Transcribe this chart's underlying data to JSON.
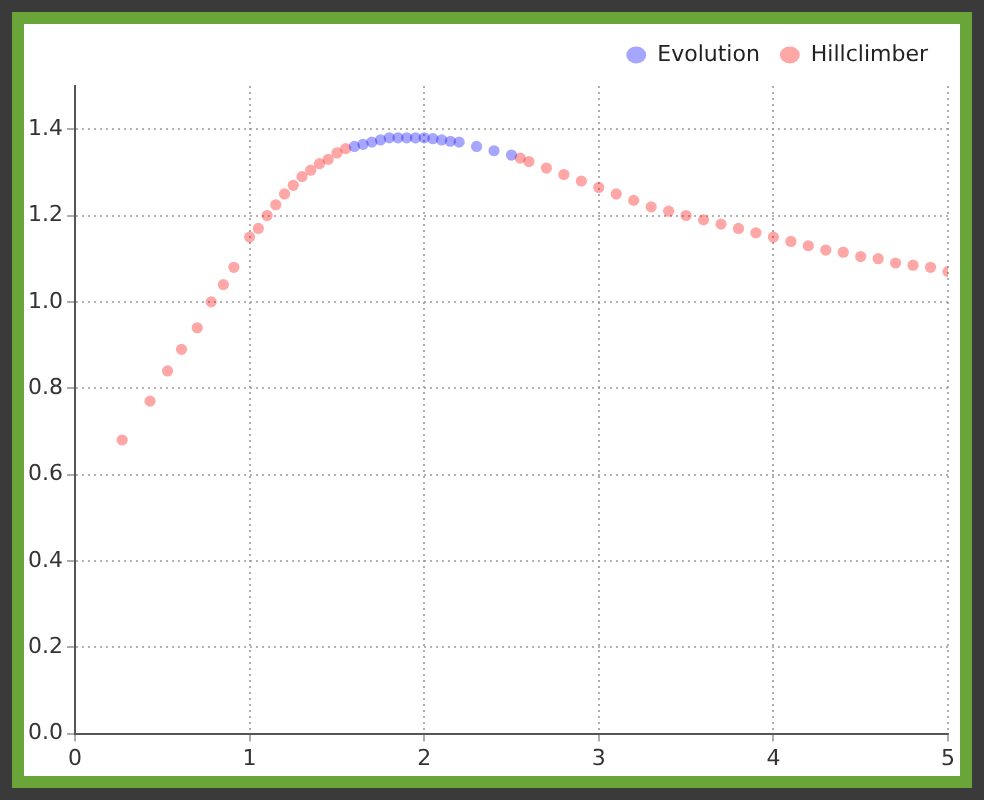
{
  "chart_data": {
    "type": "scatter",
    "xlim": [
      0,
      5
    ],
    "xticks": [
      0,
      1,
      2,
      3,
      4,
      5
    ],
    "ylim": [
      0,
      1.5
    ],
    "yticks": [
      {
        "value": 0,
        "label": "0.0"
      },
      0.2,
      0.4,
      0.6,
      0.8,
      {
        "value": 1,
        "label": "1.0"
      },
      1.2,
      1.4
    ],
    "grid": true,
    "legend": "top right",
    "marker": "circle",
    "series": [
      {
        "name": "Evolution",
        "color": "#0000ff",
        "x": [
          1.6,
          1.65,
          1.7,
          1.75,
          1.8,
          1.85,
          1.9,
          1.95,
          2.0,
          2.05,
          2.1,
          2.15,
          2.2,
          2.3,
          2.4,
          2.5
        ],
        "values": [
          1.36,
          1.365,
          1.37,
          1.375,
          1.38,
          1.38,
          1.38,
          1.38,
          1.38,
          1.378,
          1.375,
          1.372,
          1.37,
          1.36,
          1.35,
          1.34
        ]
      },
      {
        "name": "Hillclimber",
        "color": "#ff0000",
        "x": [
          0.27,
          0.43,
          0.53,
          0.61,
          0.7,
          0.78,
          0.85,
          0.91,
          1.0,
          1.05,
          1.1,
          1.15,
          1.2,
          1.25,
          1.3,
          1.35,
          1.4,
          1.45,
          1.5,
          1.55,
          2.55,
          2.6,
          2.7,
          2.8,
          2.9,
          3.0,
          3.1,
          3.2,
          3.3,
          3.4,
          3.5,
          3.6,
          3.7,
          3.8,
          3.9,
          4.0,
          4.1,
          4.2,
          4.3,
          4.4,
          4.5,
          4.6,
          4.7,
          4.8,
          4.9,
          5.0
        ],
        "values": [
          0.68,
          0.77,
          0.84,
          0.89,
          0.94,
          1.0,
          1.04,
          1.08,
          1.15,
          1.17,
          1.2,
          1.225,
          1.25,
          1.27,
          1.29,
          1.305,
          1.32,
          1.33,
          1.345,
          1.355,
          1.333,
          1.325,
          1.31,
          1.295,
          1.28,
          1.265,
          1.25,
          1.235,
          1.22,
          1.21,
          1.2,
          1.19,
          1.18,
          1.17,
          1.16,
          1.15,
          1.14,
          1.13,
          1.12,
          1.115,
          1.105,
          1.1,
          1.09,
          1.085,
          1.08,
          1.07
        ]
      }
    ]
  }
}
